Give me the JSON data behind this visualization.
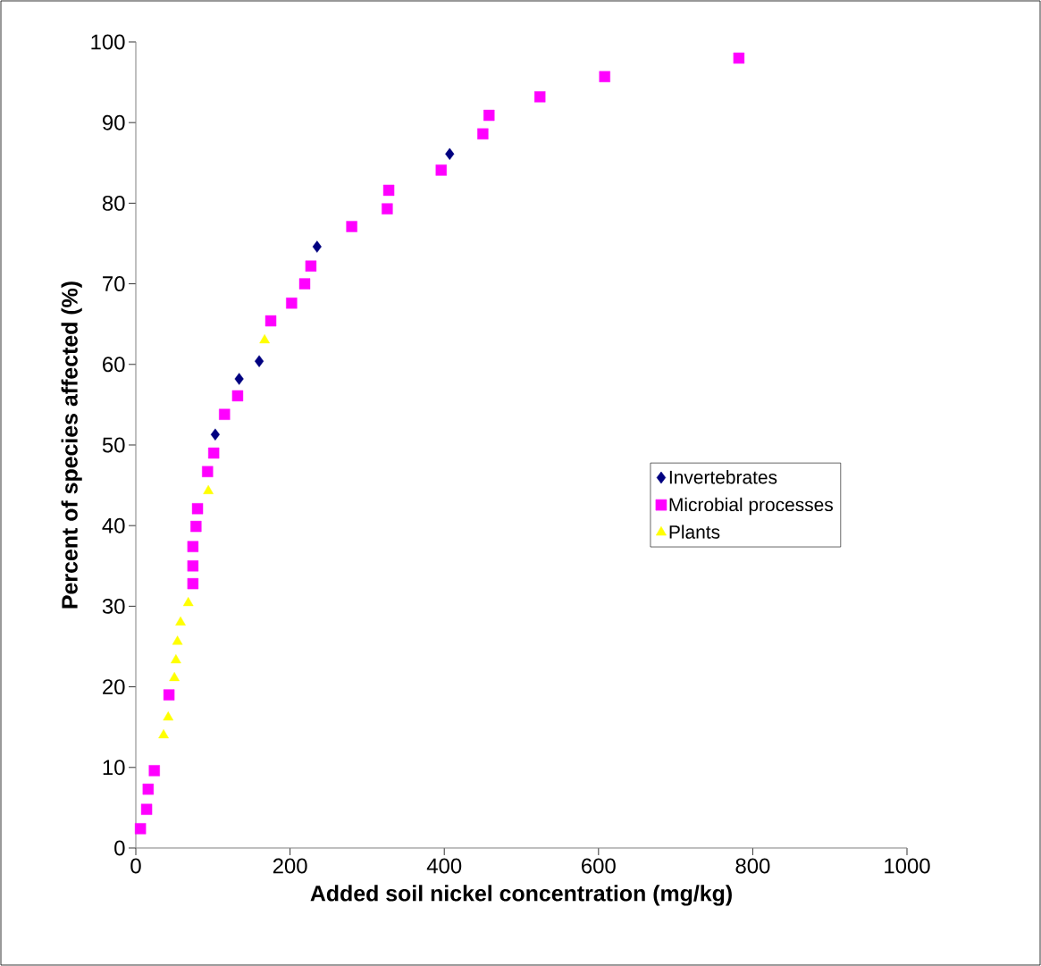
{
  "chart_data": {
    "type": "scatter",
    "xlabel": "Added soil nickel concentration (mg/kg)",
    "ylabel": "Percent of species affected (%)",
    "xlim": [
      0,
      1000
    ],
    "xticks": [
      0,
      200,
      400,
      600,
      800,
      1000
    ],
    "ylim": [
      0,
      100
    ],
    "yticks": [
      0,
      10,
      20,
      30,
      40,
      50,
      60,
      70,
      80,
      90,
      100
    ],
    "legend": "right",
    "grid": false,
    "series": [
      {
        "name": "Invertebrates",
        "color": "#000080",
        "marker": "diamond",
        "x": [
          103,
          134,
          160,
          235,
          407
        ],
        "values": [
          51.3,
          58.2,
          60.4,
          74.6,
          86.1
        ]
      },
      {
        "name": "Microbial processes",
        "color": "#ff00ff",
        "marker": "square",
        "x": [
          6,
          14,
          16,
          24,
          43,
          74,
          74,
          74,
          78,
          80,
          93,
          101,
          115,
          132,
          175,
          202,
          219,
          227,
          280,
          326,
          328,
          396,
          450,
          458,
          524,
          608,
          782
        ],
        "values": [
          2.4,
          4.8,
          7.3,
          9.6,
          19.0,
          32.8,
          35.0,
          37.4,
          39.9,
          42.1,
          46.7,
          49.0,
          53.8,
          56.1,
          65.4,
          67.6,
          70.0,
          72.2,
          77.1,
          79.3,
          81.6,
          84.1,
          88.6,
          90.9,
          93.2,
          95.7,
          98.0
        ]
      },
      {
        "name": "Plants",
        "color": "#ffff00",
        "marker": "triangle",
        "x": [
          36,
          42,
          50,
          52,
          54,
          58,
          68,
          94,
          167
        ],
        "values": [
          14.0,
          16.2,
          21.1,
          23.3,
          25.6,
          28.0,
          30.4,
          44.3,
          63.0
        ]
      }
    ]
  }
}
